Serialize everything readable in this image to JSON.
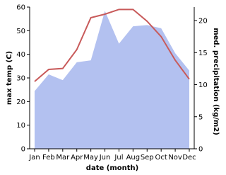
{
  "chart_data": {
    "type": "line",
    "x_label": "date (month)",
    "y_label": "max temp (C)",
    "y2_label": "med. precipitation (kg/m2)",
    "categories": [
      "Jan",
      "Feb",
      "Mar",
      "Apr",
      "May",
      "Jun",
      "Jul",
      "Aug",
      "Sep",
      "Oct",
      "Nov",
      "Dec"
    ],
    "series": [
      {
        "name": "med. precipitation",
        "type": "area",
        "axis": "y2",
        "color": "#b3c1f0",
        "values": [
          9,
          11.6,
          10.7,
          13.5,
          13.8,
          21.5,
          16.4,
          19.1,
          19.3,
          18.8,
          14.9,
          12.2
        ]
      },
      {
        "name": "max temp",
        "type": "line",
        "color": "#c85a5a",
        "values": [
          28.5,
          33.6,
          34,
          42,
          55.5,
          57,
          59,
          59,
          54,
          47.5,
          37.5,
          29.5
        ]
      }
    ],
    "ylim": [
      0,
      60
    ],
    "yticks": [
      0,
      10,
      20,
      30,
      40,
      50,
      60
    ],
    "y2lim": [
      0,
      22.1
    ],
    "y2ticks": [
      0,
      5,
      10,
      15,
      20
    ]
  }
}
